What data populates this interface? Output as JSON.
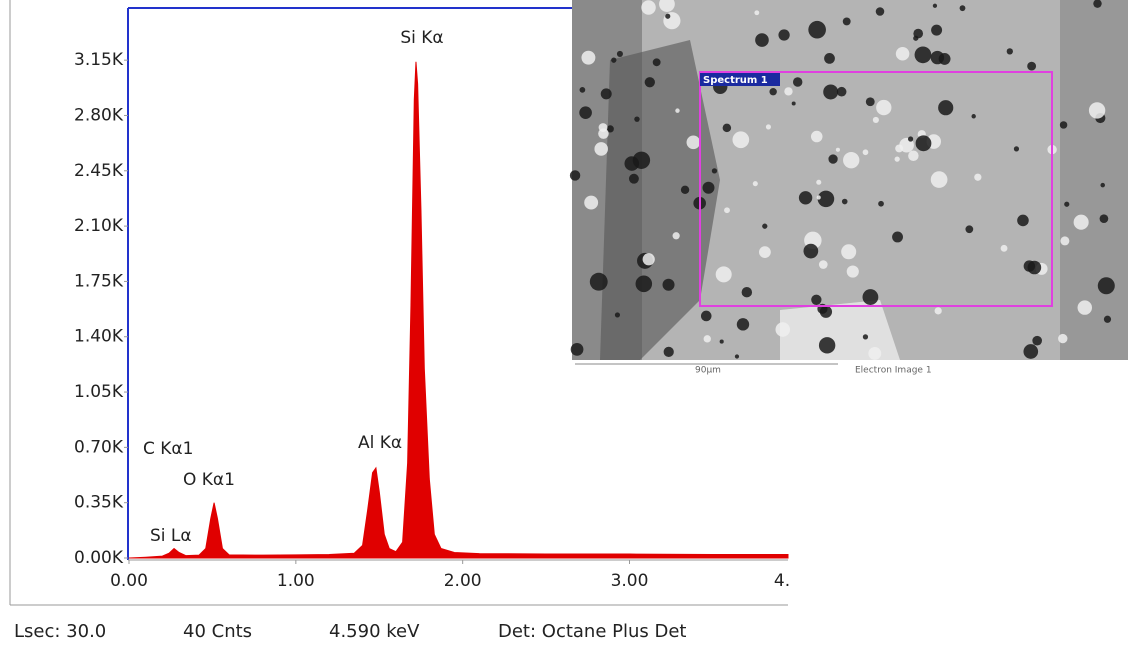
{
  "chart_data": {
    "type": "area",
    "annotations": [
      "Si Kα",
      "Al Kα",
      "C  Kα1",
      "O  Kα1",
      "Si Lα"
    ],
    "x": [
      0.0,
      0.1,
      0.2,
      0.24,
      0.27,
      0.3,
      0.34,
      0.42,
      0.46,
      0.49,
      0.51,
      0.53,
      0.56,
      0.6,
      0.8,
      1.0,
      1.2,
      1.35,
      1.4,
      1.43,
      1.46,
      1.48,
      1.5,
      1.53,
      1.56,
      1.6,
      1.64,
      1.67,
      1.69,
      1.71,
      1.72,
      1.73,
      1.75,
      1.77,
      1.8,
      1.83,
      1.87,
      1.95,
      2.1,
      2.5,
      3.0,
      3.5,
      3.95
    ],
    "series": [
      {
        "color": "#e00000",
        "values": [
          0,
          5,
          12,
          30,
          60,
          35,
          15,
          18,
          60,
          250,
          350,
          250,
          60,
          20,
          18,
          20,
          22,
          30,
          80,
          300,
          540,
          570,
          420,
          150,
          60,
          40,
          100,
          600,
          1600,
          2900,
          3140,
          3000,
          2200,
          1200,
          500,
          150,
          60,
          35,
          28,
          25,
          25,
          22,
          22
        ]
      }
    ],
    "xlim": [
      0,
      3.95
    ],
    "ylim": [
      0,
      3480
    ],
    "xticks": [
      {
        "value": 0,
        "label": "0.00"
      },
      {
        "value": 1,
        "label": "1.00"
      },
      {
        "value": 2,
        "label": "2.00"
      },
      {
        "value": 3,
        "label": "3.00"
      },
      {
        "value": 4,
        "label": "4."
      }
    ],
    "yticks": [
      {
        "value": 0,
        "label": "0.00K"
      },
      {
        "value": 350,
        "label": "0.35K"
      },
      {
        "value": 700,
        "label": "0.70K"
      },
      {
        "value": 1050,
        "label": "1.05K"
      },
      {
        "value": 1400,
        "label": "1.40K"
      },
      {
        "value": 1750,
        "label": "1.75K"
      },
      {
        "value": 2100,
        "label": "2.10K"
      },
      {
        "value": 2450,
        "label": "2.45K"
      },
      {
        "value": 2800,
        "label": "2.80K"
      },
      {
        "value": 3150,
        "label": "3.15K"
      }
    ],
    "footer": [
      "Lsec: 30.0",
      "40 Cnts",
      "4.590 keV",
      "Det: Octane Plus Det"
    ],
    "image_labels": [
      "Spectrum 1",
      "90µm",
      "Electron Image 1"
    ]
  }
}
